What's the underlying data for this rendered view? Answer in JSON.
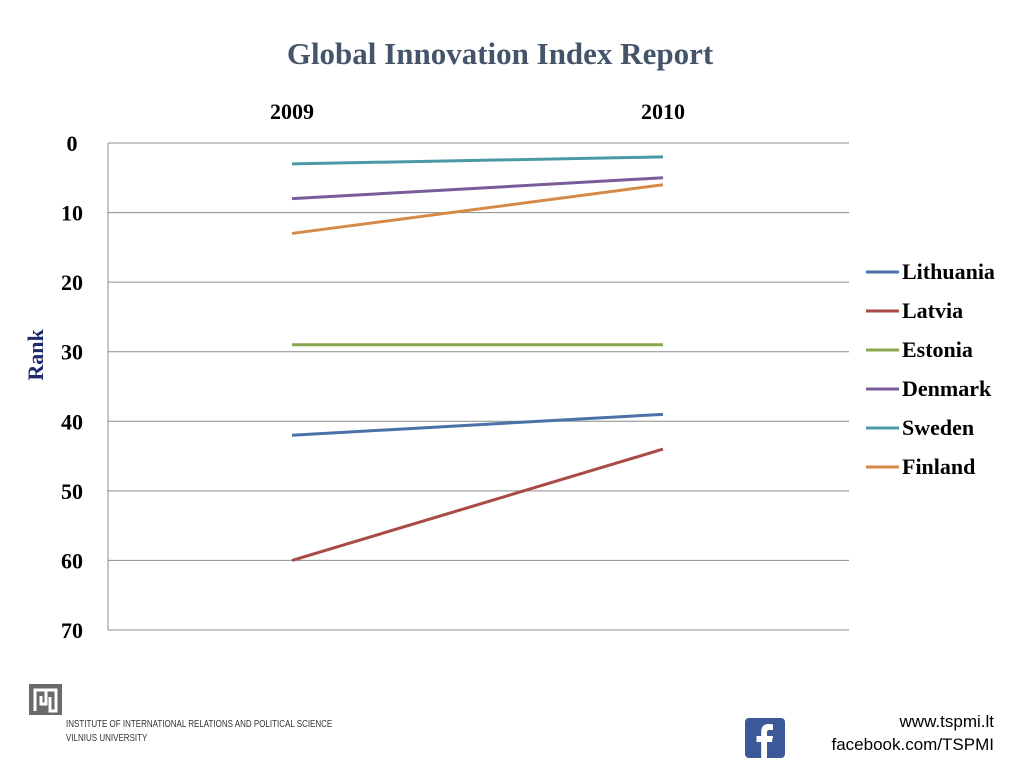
{
  "slide": {
    "title": "Global Innovation Index Report"
  },
  "chart_data": {
    "type": "line",
    "title": "",
    "xlabel": "",
    "ylabel": "Rank",
    "categories": [
      "2009",
      "2010"
    ],
    "x_axis_position": "top",
    "y_inverted": true,
    "ylim": [
      0,
      70
    ],
    "yticks": [
      0,
      10,
      20,
      30,
      40,
      50,
      60,
      70
    ],
    "grid": true,
    "legend_position": "right",
    "series": [
      {
        "name": "Lithuania",
        "values": [
          42,
          39
        ],
        "color": "#4a72a8"
      },
      {
        "name": "Latvia",
        "values": [
          60,
          44
        ],
        "color": "#a84a46"
      },
      {
        "name": "Estonia",
        "values": [
          29,
          29
        ],
        "color": "#88a84e"
      },
      {
        "name": "Denmark",
        "values": [
          8,
          5
        ],
        "color": "#7a5c9a"
      },
      {
        "name": "Sweden",
        "values": [
          3,
          2
        ],
        "color": "#4a9aa6"
      },
      {
        "name": "Finland",
        "values": [
          13,
          6
        ],
        "color": "#d68a4a"
      }
    ]
  },
  "footer": {
    "institute_line1": "INSTITUTE OF INTERNATIONAL RELATIONS AND POLITICAL SCIENCE",
    "institute_line2": "VILNIUS UNIVERSITY",
    "website": "www.tspmi.lt",
    "facebook": "facebook.com/TSPMI"
  }
}
